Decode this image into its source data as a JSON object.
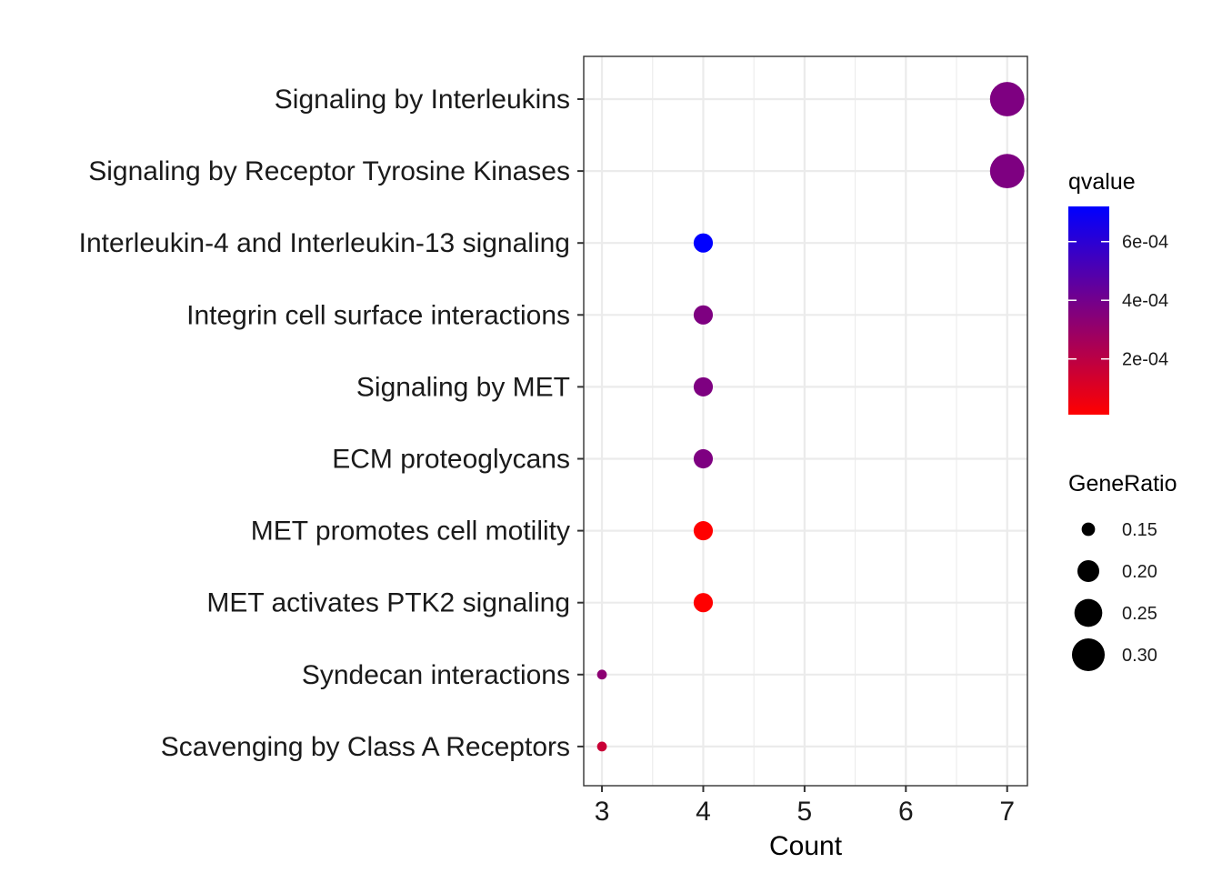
{
  "chart_data": {
    "type": "scatter",
    "xlabel": "Count",
    "xlim": [
      2.82,
      7.2
    ],
    "x_ticks": [
      3,
      4,
      5,
      6,
      7
    ],
    "grid": true,
    "categories": [
      "Signaling by Interleukins",
      "Signaling by Receptor Tyrosine Kinases",
      "Interleukin-4 and Interleukin-13 signaling",
      "Integrin cell surface interactions",
      "Signaling by MET",
      "ECM proteoglycans",
      "MET promotes cell motility",
      "MET activates PTK2 signaling",
      "Syndecan interactions",
      "Scavenging by Class A Receptors"
    ],
    "points": [
      {
        "category": "Signaling by Interleukins",
        "count": 7,
        "gene_ratio": 0.318,
        "qvalue": 0.00037
      },
      {
        "category": "Signaling by Receptor Tyrosine Kinases",
        "count": 7,
        "gene_ratio": 0.318,
        "qvalue": 0.00037
      },
      {
        "category": "Interleukin-4 and Interleukin-13 signaling",
        "count": 4,
        "gene_ratio": 0.182,
        "qvalue": 0.00072
      },
      {
        "category": "Integrin cell surface interactions",
        "count": 4,
        "gene_ratio": 0.182,
        "qvalue": 0.00037
      },
      {
        "category": "Signaling by MET",
        "count": 4,
        "gene_ratio": 0.182,
        "qvalue": 0.00037
      },
      {
        "category": "ECM proteoglycans",
        "count": 4,
        "gene_ratio": 0.182,
        "qvalue": 0.00037
      },
      {
        "category": "MET promotes cell motility",
        "count": 4,
        "gene_ratio": 0.182,
        "qvalue": 1e-05
      },
      {
        "category": "MET activates PTK2 signaling",
        "count": 4,
        "gene_ratio": 0.182,
        "qvalue": 1e-05
      },
      {
        "category": "Syndecan interactions",
        "count": 3,
        "gene_ratio": 0.136,
        "qvalue": 0.00033
      },
      {
        "category": "Scavenging by Class A Receptors",
        "count": 3,
        "gene_ratio": 0.136,
        "qvalue": 0.00016
      }
    ],
    "color_legend": {
      "title": "qvalue",
      "low_color": "#ff0000",
      "high_color": "#0000ff",
      "min": 1e-05,
      "max": 0.00072,
      "breaks": [
        0.0002,
        0.0004,
        0.0006
      ],
      "labels": [
        "2e-04",
        "4e-04",
        "6e-04"
      ]
    },
    "size_legend": {
      "title": "GeneRatio",
      "breaks": [
        0.15,
        0.2,
        0.25,
        0.3
      ],
      "labels": [
        "0.15",
        "0.20",
        "0.25",
        "0.30"
      ]
    }
  }
}
